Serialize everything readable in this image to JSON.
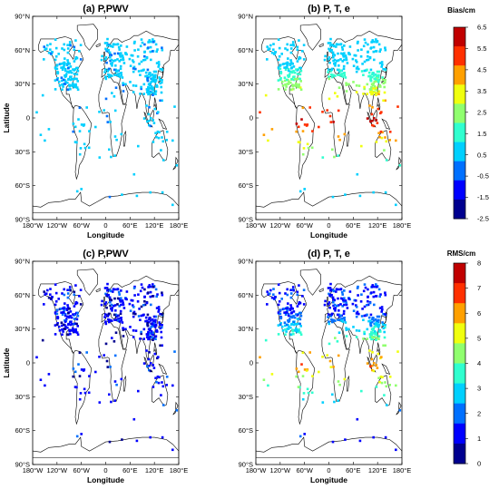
{
  "panels": [
    {
      "id": "a",
      "title": "(a) P,PWV",
      "metric": "bias"
    },
    {
      "id": "b",
      "title": "(b) P, T, e",
      "metric": "bias"
    },
    {
      "id": "c",
      "title": "(c) P,PWV",
      "metric": "rms"
    },
    {
      "id": "d",
      "title": "(d) P, T, e",
      "metric": "rms"
    }
  ],
  "axes": {
    "xlabel": "Longitude",
    "ylabel": "Latitude",
    "lon_ticks": [
      "180°W",
      "120°W",
      "60°W",
      "0",
      "60°E",
      "120°E",
      "180°E"
    ],
    "lat_ticks": [
      "90°N",
      "60°N",
      "30°N",
      "0",
      "30°S",
      "60°S",
      "90°S"
    ],
    "lon_range": [
      -180,
      180
    ],
    "lat_range": [
      -90,
      90
    ]
  },
  "colorbars": {
    "bias": {
      "title": "Bias/cm",
      "min": -2.5,
      "max": 6.5,
      "ticks": [
        "6.5",
        "5.5",
        "4.5",
        "3.5",
        "2.5",
        "1.5",
        "0.5",
        "-0.5",
        "-1.5",
        "-2.5"
      ]
    },
    "rms": {
      "title": "RMS/cm",
      "min": 0,
      "max": 8,
      "ticks": [
        "8",
        "7",
        "6",
        "5",
        "4",
        "3",
        "2",
        "1",
        "0"
      ]
    }
  },
  "colormap": [
    "#00008f",
    "#0000ff",
    "#0070ff",
    "#00d0ff",
    "#30ffcf",
    "#90ff6f",
    "#f0ff0f",
    "#ffa000",
    "#ff3000",
    "#c00000"
  ]
}
